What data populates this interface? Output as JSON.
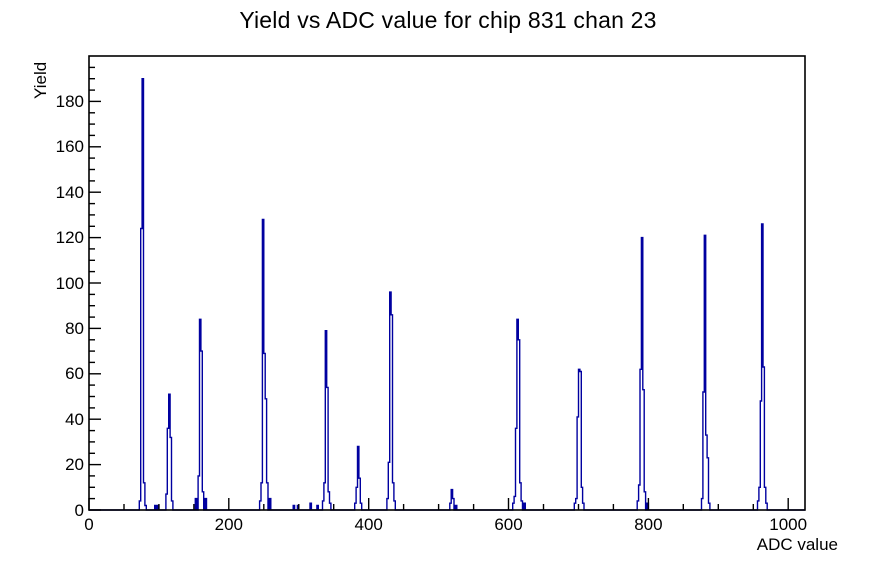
{
  "title": "Yield vs ADC value for chip 831 chan 23",
  "chart_data": {
    "type": "bar",
    "subtype": "histogram-outline",
    "title": "Yield vs ADC value for chip 831 chan 23",
    "xlabel": "ADC value",
    "ylabel": "Yield",
    "xlim": [
      0,
      1024
    ],
    "ylim": [
      0,
      200
    ],
    "x_major_ticks": [
      0,
      200,
      400,
      600,
      800,
      1000
    ],
    "x_minor_step": 50,
    "y_major_ticks": [
      0,
      20,
      40,
      60,
      80,
      100,
      120,
      140,
      160,
      180
    ],
    "y_minor_step": 5,
    "grid": "off",
    "legend": "none",
    "line_color": "#0000a0",
    "frame_color": "#000000",
    "bin_width": 2,
    "bins": [
      [
        72,
        4
      ],
      [
        74,
        124
      ],
      [
        76,
        190
      ],
      [
        78,
        12
      ],
      [
        80,
        2
      ],
      [
        94,
        2
      ],
      [
        98,
        2
      ],
      [
        110,
        7
      ],
      [
        112,
        36
      ],
      [
        114,
        51
      ],
      [
        116,
        32
      ],
      [
        118,
        4
      ],
      [
        152,
        5
      ],
      [
        156,
        15
      ],
      [
        158,
        84
      ],
      [
        160,
        70
      ],
      [
        162,
        8
      ],
      [
        166,
        5
      ],
      [
        244,
        4
      ],
      [
        246,
        12
      ],
      [
        248,
        128
      ],
      [
        250,
        69
      ],
      [
        252,
        49
      ],
      [
        254,
        12
      ],
      [
        258,
        5
      ],
      [
        292,
        2
      ],
      [
        298,
        2
      ],
      [
        316,
        3
      ],
      [
        326,
        2
      ],
      [
        334,
        4
      ],
      [
        336,
        12
      ],
      [
        338,
        79
      ],
      [
        340,
        54
      ],
      [
        342,
        8
      ],
      [
        344,
        3
      ],
      [
        380,
        3
      ],
      [
        382,
        10
      ],
      [
        384,
        28
      ],
      [
        386,
        14
      ],
      [
        388,
        3
      ],
      [
        426,
        5
      ],
      [
        428,
        21
      ],
      [
        430,
        96
      ],
      [
        432,
        86
      ],
      [
        434,
        12
      ],
      [
        436,
        4
      ],
      [
        516,
        3
      ],
      [
        518,
        9
      ],
      [
        520,
        5
      ],
      [
        524,
        2
      ],
      [
        606,
        3
      ],
      [
        608,
        6
      ],
      [
        610,
        36
      ],
      [
        612,
        84
      ],
      [
        614,
        75
      ],
      [
        616,
        12
      ],
      [
        618,
        4
      ],
      [
        622,
        3
      ],
      [
        694,
        3
      ],
      [
        696,
        5
      ],
      [
        698,
        41
      ],
      [
        700,
        62
      ],
      [
        702,
        61
      ],
      [
        704,
        10
      ],
      [
        706,
        3
      ],
      [
        784,
        4
      ],
      [
        786,
        11
      ],
      [
        788,
        62
      ],
      [
        790,
        120
      ],
      [
        792,
        53
      ],
      [
        794,
        8
      ],
      [
        798,
        3
      ],
      [
        876,
        5
      ],
      [
        878,
        52
      ],
      [
        880,
        121
      ],
      [
        882,
        33
      ],
      [
        884,
        23
      ],
      [
        886,
        3
      ],
      [
        956,
        4
      ],
      [
        958,
        10
      ],
      [
        960,
        48
      ],
      [
        962,
        126
      ],
      [
        964,
        63
      ],
      [
        966,
        10
      ],
      [
        968,
        3
      ]
    ]
  }
}
